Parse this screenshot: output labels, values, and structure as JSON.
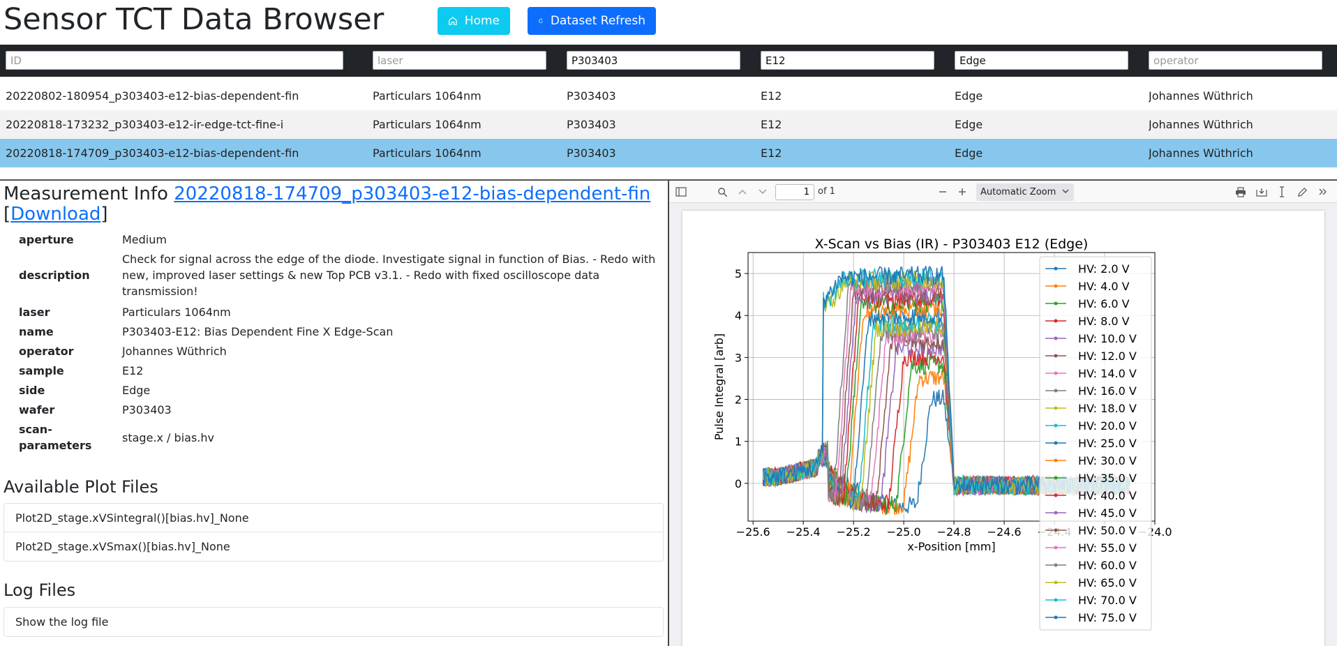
{
  "app": {
    "title": "Sensor TCT Data Browser",
    "home_label": "Home",
    "refresh_label": "Dataset Refresh"
  },
  "filters": [
    {
      "placeholder": "ID",
      "value": ""
    },
    {
      "placeholder": "laser",
      "value": ""
    },
    {
      "placeholder": "",
      "value": "P303403"
    },
    {
      "placeholder": "",
      "value": "E12"
    },
    {
      "placeholder": "",
      "value": "Edge"
    },
    {
      "placeholder": "operator",
      "value": ""
    }
  ],
  "rows": [
    [
      "20220802-180954_p303403-e12-bias-dependent-fin",
      "Particulars 1064nm",
      "P303403",
      "E12",
      "Edge",
      "Johannes Wüthrich"
    ],
    [
      "20220818-173232_p303403-e12-ir-edge-tct-fine-i",
      "Particulars 1064nm",
      "P303403",
      "E12",
      "Edge",
      "Johannes Wüthrich"
    ],
    [
      "20220818-174709_p303403-e12-bias-dependent-fin",
      "Particulars 1064nm",
      "P303403",
      "E12",
      "Edge",
      "Johannes Wüthrich"
    ]
  ],
  "measurement": {
    "heading": "Measurement Info",
    "link": "20220818-174709_p303403-e12-bias-dependent-fin",
    "bracket_open": "[",
    "download": "Download",
    "bracket_close": "]",
    "info": [
      {
        "key": "aperture",
        "value": "Medium"
      },
      {
        "key": "description",
        "value": "Check for signal across the edge of the diode. Investigate signal in function of Bias. - Redo with new, improved laser settings & new Top PCB v3.1. - Redo with fixed oscilloscope data transmission!"
      },
      {
        "key": "laser",
        "value": "Particulars 1064nm"
      },
      {
        "key": "name",
        "value": "P303403-E12: Bias Dependent Fine X Edge-Scan"
      },
      {
        "key": "operator",
        "value": "Johannes Wüthrich"
      },
      {
        "key": "sample",
        "value": "E12"
      },
      {
        "key": "side",
        "value": "Edge"
      },
      {
        "key": "wafer",
        "value": "P303403"
      },
      {
        "key": "scan-\nparameters",
        "value": "stage.x / bias.hv"
      }
    ]
  },
  "plot_files": {
    "heading": "Available Plot Files",
    "items": [
      "Plot2D_stage.xVSintegral()[bias.hv]_None",
      "Plot2D_stage.xVSmax()[bias.hv]_None"
    ]
  },
  "log_files": {
    "heading": "Log Files",
    "items": [
      "Show the log file"
    ]
  },
  "viewer": {
    "page_number": "1",
    "page_of": "of 1",
    "zoom": "Automatic Zoom"
  },
  "chart_data": {
    "type": "line",
    "title": "X-Scan vs Bias (IR) - P303403 E12 (Edge)",
    "xlabel": "x-Position [mm]",
    "ylabel": "Pulse Integral [arb]",
    "xlim": [
      -25.62,
      -24.0
    ],
    "ylim": [
      -0.9,
      5.5
    ],
    "xticks": [
      -25.6,
      -25.4,
      -25.2,
      -25.0,
      -24.8,
      -24.6,
      -24.4,
      -24.2,
      -24.0
    ],
    "xtick_labels": [
      "−25.6",
      "−25.4",
      "−25.2",
      "−25.0",
      "−24.8",
      "−24.6",
      "−24.4",
      "",
      "−24.0"
    ],
    "yticks": [
      0,
      1,
      2,
      3,
      4,
      5
    ],
    "grid": true,
    "legend": "upper right",
    "x_start": -25.56,
    "x_end": -24.1,
    "series": [
      {
        "name": "HV: 2.0 V",
        "color": "#1f77b4",
        "plateau": 2.0,
        "rise": -24.95
      },
      {
        "name": "HV: 4.0 V",
        "color": "#ff7f0e",
        "plateau": 2.5,
        "rise": -25.0
      },
      {
        "name": "HV: 6.0 V",
        "color": "#2ca02c",
        "plateau": 2.8,
        "rise": -25.03
      },
      {
        "name": "HV: 8.0 V",
        "color": "#d62728",
        "plateau": 3.0,
        "rise": -25.06
      },
      {
        "name": "HV: 10.0 V",
        "color": "#9467bd",
        "plateau": 3.2,
        "rise": -25.09
      },
      {
        "name": "HV: 12.0 V",
        "color": "#8c564b",
        "plateau": 3.35,
        "rise": -25.11
      },
      {
        "name": "HV: 14.0 V",
        "color": "#e377c2",
        "plateau": 3.5,
        "rise": -25.13
      },
      {
        "name": "HV: 16.0 V",
        "color": "#7f7f7f",
        "plateau": 3.6,
        "rise": -25.15
      },
      {
        "name": "HV: 18.0 V",
        "color": "#bcbd22",
        "plateau": 3.7,
        "rise": -25.17
      },
      {
        "name": "HV: 20.0 V",
        "color": "#17becf",
        "plateau": 3.8,
        "rise": -25.18
      },
      {
        "name": "HV: 25.0 V",
        "color": "#1f77b4",
        "plateau": 3.95,
        "rise": -25.2
      },
      {
        "name": "HV: 30.0 V",
        "color": "#ff7f0e",
        "plateau": 4.1,
        "rise": -25.22
      },
      {
        "name": "HV: 35.0 V",
        "color": "#2ca02c",
        "plateau": 4.25,
        "rise": -25.23
      },
      {
        "name": "HV: 40.0 V",
        "color": "#d62728",
        "plateau": 4.35,
        "rise": -25.24
      },
      {
        "name": "HV: 45.0 V",
        "color": "#9467bd",
        "plateau": 4.45,
        "rise": -25.25
      },
      {
        "name": "HV: 50.0 V",
        "color": "#8c564b",
        "plateau": 4.55,
        "rise": -25.26
      },
      {
        "name": "HV: 55.0 V",
        "color": "#e377c2",
        "plateau": 4.65,
        "rise": -25.27
      },
      {
        "name": "HV: 60.0 V",
        "color": "#7f7f7f",
        "plateau": 4.72,
        "rise": -25.28
      },
      {
        "name": "HV: 65.0 V",
        "color": "#bcbd22",
        "plateau": 4.8,
        "rise": -25.29
      },
      {
        "name": "HV: 70.0 V",
        "color": "#17becf",
        "plateau": 4.85,
        "rise": -25.3
      },
      {
        "name": "HV: 75.0 V",
        "color": "#1f77b4",
        "plateau": 4.9,
        "rise": -25.31
      }
    ]
  }
}
